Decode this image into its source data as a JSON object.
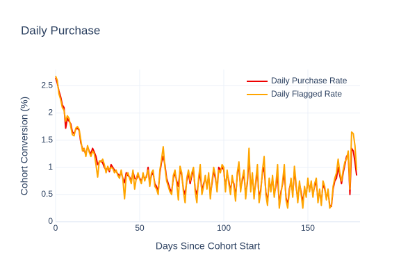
{
  "chart_data": {
    "type": "line",
    "title": "Daily Purchase",
    "xlabel": "Days Since Cohort Start",
    "ylabel": "Cohort Conversion (%)",
    "x": [
      0,
      1,
      2,
      3,
      4,
      5,
      6,
      7,
      8,
      9,
      10,
      11,
      12,
      13,
      14,
      15,
      16,
      17,
      18,
      19,
      20,
      21,
      22,
      23,
      24,
      25,
      26,
      27,
      28,
      29,
      30,
      31,
      32,
      33,
      34,
      35,
      36,
      37,
      38,
      39,
      40,
      41,
      42,
      43,
      44,
      45,
      46,
      47,
      48,
      49,
      50,
      51,
      52,
      53,
      54,
      55,
      56,
      57,
      58,
      59,
      60,
      61,
      62,
      63,
      64,
      65,
      66,
      67,
      68,
      69,
      70,
      71,
      72,
      73,
      74,
      75,
      76,
      77,
      78,
      79,
      80,
      81,
      82,
      83,
      84,
      85,
      86,
      87,
      88,
      89,
      90,
      91,
      92,
      93,
      94,
      95,
      96,
      97,
      98,
      99,
      100,
      101,
      102,
      103,
      104,
      105,
      106,
      107,
      108,
      109,
      110,
      111,
      112,
      113,
      114,
      115,
      116,
      117,
      118,
      119,
      120,
      121,
      122,
      123,
      124,
      125,
      126,
      127,
      128,
      129,
      130,
      131,
      132,
      133,
      134,
      135,
      136,
      137,
      138,
      139,
      140,
      141,
      142,
      143,
      144,
      145,
      146,
      147,
      148,
      149,
      150,
      151,
      152,
      153,
      154,
      155,
      156,
      157,
      158,
      159,
      160,
      161,
      162,
      163,
      164,
      165,
      166,
      167,
      168,
      169,
      170,
      171,
      172,
      173,
      174,
      175,
      176,
      177,
      178,
      179
    ],
    "series": [
      {
        "name": "Daily Purchase Rate",
        "color": "#ee0000",
        "values": [
          2.65,
          2.55,
          2.4,
          2.3,
          2.15,
          2.1,
          1.72,
          1.9,
          1.85,
          1.8,
          1.65,
          1.62,
          1.7,
          1.72,
          1.68,
          1.45,
          1.35,
          1.3,
          1.25,
          1.38,
          1.3,
          1.25,
          1.35,
          1.28,
          1.2,
          1.05,
          1.1,
          1.12,
          1.08,
          1.0,
          0.95,
          1.0,
          0.92,
          1.05,
          1.0,
          0.95,
          0.92,
          0.88,
          0.85,
          0.9,
          0.8,
          0.72,
          0.9,
          0.85,
          0.82,
          0.75,
          0.92,
          0.8,
          0.78,
          0.85,
          0.8,
          0.75,
          0.85,
          0.8,
          0.82,
          1.0,
          0.72,
          0.85,
          0.9,
          0.7,
          0.65,
          0.55,
          0.9,
          1.1,
          1.2,
          1.05,
          0.8,
          0.7,
          0.6,
          0.55,
          0.8,
          0.9,
          0.75,
          0.65,
          0.95,
          0.85,
          0.6,
          0.5,
          0.75,
          0.9,
          0.7,
          0.85,
          0.95,
          0.6,
          0.5,
          0.75,
          0.9,
          0.55,
          0.7,
          0.8,
          0.65,
          0.85,
          0.5,
          0.7,
          0.95,
          0.8,
          0.6,
          1.0,
          0.95,
          1.0,
          0.95,
          0.6,
          0.9,
          0.75,
          0.55,
          0.8,
          0.7,
          0.45,
          0.85,
          1.05,
          0.6,
          0.75,
          0.9,
          0.5,
          0.7,
          1.2,
          0.6,
          0.85,
          0.5,
          0.7,
          0.95,
          0.4,
          0.6,
          0.9,
          1.0,
          0.55,
          0.35,
          0.75,
          0.6,
          0.8,
          0.5,
          0.65,
          0.85,
          0.3,
          0.55,
          0.7,
          0.9,
          0.45,
          0.3,
          0.6,
          0.75,
          0.5,
          0.95,
          0.65,
          0.4,
          0.7,
          0.55,
          0.35,
          0.6,
          0.5,
          0.75,
          0.6,
          0.7,
          0.5,
          0.65,
          0.75,
          0.4,
          0.55,
          0.35,
          0.7,
          0.6,
          0.45,
          0.55,
          0.3,
          0.28,
          0.6,
          0.75,
          0.8,
          1.0,
          0.85,
          0.7,
          0.9,
          1.05,
          1.2,
          1.25,
          0.5,
          1.35,
          1.3,
          1.1,
          0.85
        ]
      },
      {
        "name": "Daily Flagged Rate",
        "color": "#ffa500",
        "values": [
          2.68,
          2.6,
          2.35,
          2.25,
          2.1,
          2.05,
          1.85,
          1.95,
          1.9,
          1.75,
          1.6,
          1.58,
          1.72,
          1.75,
          1.7,
          1.5,
          1.3,
          1.35,
          1.2,
          1.4,
          1.28,
          1.2,
          1.3,
          1.25,
          1.05,
          0.82,
          1.12,
          1.1,
          1.15,
          1.05,
          0.9,
          1.02,
          0.95,
          1.0,
          0.98,
          0.9,
          0.95,
          0.85,
          0.8,
          0.95,
          0.78,
          0.42,
          0.85,
          0.9,
          0.8,
          0.7,
          0.95,
          0.6,
          0.8,
          0.9,
          0.78,
          0.7,
          0.9,
          0.75,
          0.85,
          0.95,
          0.65,
          0.9,
          0.95,
          0.65,
          0.6,
          0.5,
          0.95,
          1.15,
          1.38,
          1.0,
          0.75,
          0.65,
          0.55,
          0.5,
          0.85,
          0.95,
          0.7,
          0.4,
          1.02,
          0.9,
          0.55,
          0.35,
          0.8,
          0.95,
          0.75,
          0.9,
          1.0,
          0.55,
          0.35,
          0.8,
          1.05,
          0.5,
          0.65,
          0.85,
          0.6,
          0.9,
          0.42,
          0.75,
          1.0,
          0.85,
          0.55,
          0.95,
          0.9,
          1.05,
          1.0,
          0.55,
          0.95,
          0.7,
          0.5,
          0.85,
          0.65,
          0.38,
          0.9,
          1.1,
          0.55,
          0.8,
          0.95,
          0.42,
          0.75,
          1.35,
          0.55,
          0.9,
          0.42,
          0.75,
          1.05,
          0.35,
          0.55,
          0.95,
          1.2,
          0.5,
          0.3,
          0.8,
          0.55,
          0.85,
          0.45,
          0.7,
          1.05,
          0.25,
          0.5,
          0.75,
          1.05,
          0.4,
          0.25,
          0.55,
          0.8,
          0.45,
          1.02,
          0.7,
          0.35,
          0.75,
          0.5,
          0.25,
          0.65,
          0.45,
          0.8,
          0.55,
          0.75,
          0.45,
          0.7,
          0.8,
          0.35,
          0.6,
          0.3,
          0.75,
          0.65,
          0.4,
          0.6,
          0.25,
          0.3,
          0.65,
          0.8,
          0.9,
          1.15,
          0.9,
          0.75,
          0.95,
          1.1,
          1.15,
          1.3,
          0.6,
          1.65,
          1.62,
          1.4,
          0.95
        ]
      }
    ],
    "xlim": [
      0,
      181
    ],
    "xticks": [
      0,
      50,
      100,
      150
    ],
    "ylim": [
      0,
      2.8
    ],
    "yticks": [
      0,
      0.5,
      1,
      1.5,
      2,
      2.5
    ],
    "grid": true,
    "legend": "top-right"
  }
}
